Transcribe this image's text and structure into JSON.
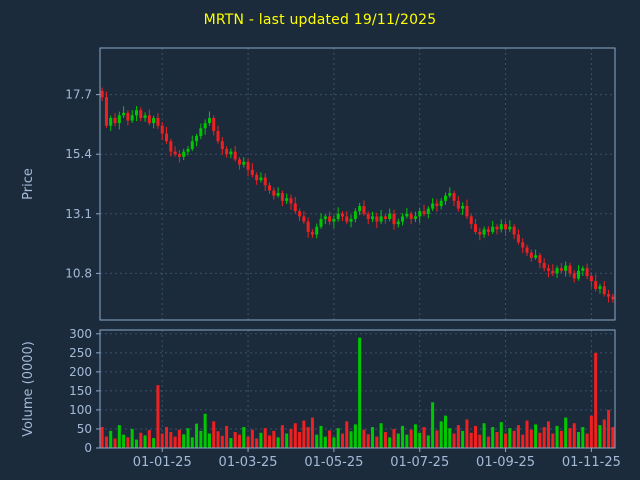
{
  "title": "MRTN - last updated 19/11/2025",
  "colors": {
    "background": "#1b2b3c",
    "title": "#ffff00",
    "spine": "#8aa8c8",
    "tick_label": "#a4bad6",
    "grid": "#3c5068",
    "candle_up": "#00c800",
    "candle_down": "#f02020"
  },
  "chart_data": [
    {
      "type": "candlestick",
      "title": "MRTN - last updated 19/11/2025",
      "ylabel": "Price",
      "y_ticks": [
        17.7,
        15.4,
        13.1,
        10.8
      ],
      "ylim": [
        9.0,
        19.5
      ],
      "grid": true,
      "legend": "none",
      "x_tick_labels": [
        "01-01-25",
        "01-03-25",
        "01-05-25",
        "01-07-25",
        "01-09-25",
        "01-11-25"
      ],
      "x_tick_indices": [
        14,
        34,
        54,
        74,
        94,
        114
      ],
      "first_open": 17.85,
      "close": [
        17.6,
        16.5,
        16.8,
        16.6,
        16.9,
        17.0,
        16.7,
        16.9,
        17.1,
        16.8,
        16.9,
        16.6,
        16.8,
        16.5,
        16.2,
        15.9,
        15.5,
        15.4,
        15.3,
        15.5,
        15.6,
        15.9,
        16.1,
        16.4,
        16.6,
        16.8,
        16.3,
        15.9,
        15.6,
        15.4,
        15.5,
        15.2,
        15.0,
        15.1,
        14.8,
        14.6,
        14.4,
        14.5,
        14.2,
        14.0,
        13.8,
        13.9,
        13.6,
        13.7,
        13.5,
        13.2,
        13.0,
        12.8,
        12.4,
        12.3,
        12.6,
        12.9,
        13.0,
        12.8,
        12.9,
        13.1,
        13.0,
        12.8,
        12.9,
        13.2,
        13.4,
        13.1,
        12.9,
        13.0,
        12.8,
        13.0,
        12.9,
        13.1,
        12.7,
        12.8,
        13.0,
        13.1,
        12.9,
        13.0,
        13.2,
        13.1,
        13.3,
        13.5,
        13.4,
        13.6,
        13.8,
        13.9,
        13.6,
        13.3,
        13.4,
        13.0,
        12.7,
        12.4,
        12.3,
        12.5,
        12.4,
        12.6,
        12.5,
        12.7,
        12.5,
        12.6,
        12.3,
        12.0,
        11.8,
        11.6,
        11.4,
        11.5,
        11.2,
        11.0,
        10.9,
        10.8,
        11.0,
        10.9,
        11.1,
        10.8,
        10.6,
        10.9,
        11.0,
        10.7,
        10.5,
        10.2,
        10.3,
        10.0,
        9.9,
        9.8
      ],
      "wick_up": [
        0.12,
        0.22,
        0.09,
        0.18,
        0.14,
        0.25,
        0.1,
        0.2,
        0.16,
        0.11
      ],
      "wick_down": [
        0.15,
        0.08,
        0.2,
        0.12,
        0.25,
        0.1,
        0.18,
        0.09,
        0.22,
        0.13
      ]
    },
    {
      "type": "bar",
      "ylabel": "Volume (0000)",
      "y_ticks": [
        0,
        50,
        100,
        150,
        200,
        250,
        300
      ],
      "ylim": [
        0,
        310
      ],
      "grid": true,
      "legend": "none",
      "values": [
        55,
        30,
        45,
        25,
        60,
        35,
        28,
        50,
        22,
        40,
        33,
        47,
        26,
        165,
        38,
        55,
        42,
        30,
        48,
        36,
        52,
        28,
        64,
        45,
        90,
        38,
        70,
        44,
        32,
        58,
        26,
        42,
        35,
        55,
        30,
        48,
        25,
        40,
        52,
        33,
        45,
        28,
        60,
        38,
        50,
        65,
        42,
        72,
        55,
        80,
        35,
        58,
        30,
        46,
        28,
        52,
        38,
        70,
        44,
        62,
        290,
        48,
        36,
        55,
        30,
        65,
        42,
        28,
        50,
        38,
        58,
        35,
        48,
        62,
        40,
        55,
        33,
        120,
        46,
        70,
        85,
        52,
        38,
        60,
        45,
        75,
        40,
        58,
        35,
        65,
        30,
        55,
        42,
        68,
        38,
        52,
        45,
        60,
        35,
        72,
        48,
        62,
        40,
        55,
        70,
        38,
        58,
        45,
        80,
        52,
        65,
        42,
        55,
        38,
        85,
        250,
        60,
        75,
        100,
        55
      ]
    }
  ]
}
